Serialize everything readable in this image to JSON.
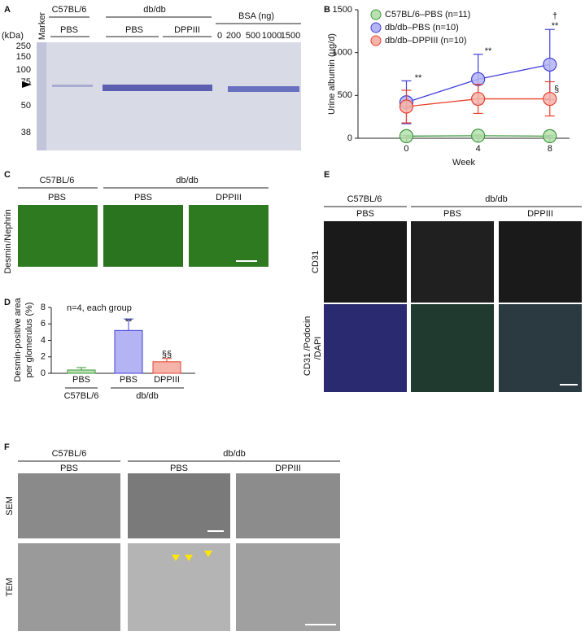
{
  "panel_labels": [
    "A",
    "B",
    "C",
    "D",
    "E",
    "F"
  ],
  "panel_a": {
    "groups": [
      "C57BL/6",
      "db/db",
      "BSA (ng)"
    ],
    "treatments": [
      "PBS",
      "PBS",
      "DPPIII"
    ],
    "bsa_amounts": [
      "0",
      "200",
      "500",
      "1000",
      "1500"
    ],
    "unit": "(kDa)",
    "marker": "Marker",
    "marker_sizes": [
      "250",
      "150",
      "100",
      "75",
      "50",
      "38"
    ]
  },
  "chart_data": [
    {
      "type": "line",
      "xlabel": "Week",
      "ylabel": "Urine albumin (µg/d)",
      "x": [
        0,
        4,
        8
      ],
      "xlim": [
        -2.7,
        9.1
      ],
      "xticks": [
        0,
        4,
        8
      ],
      "ylim": [
        0,
        1500
      ],
      "yticks": [
        0,
        500,
        1000,
        1500
      ],
      "legend": "upper left",
      "series": [
        {
          "name": "C57BL/6–PBS (n=11)",
          "color": "#3c9a3c",
          "fill": "#b8e0b0",
          "values": [
            25,
            30,
            25
          ],
          "errors": [
            10,
            10,
            10
          ]
        },
        {
          "name": "db/db–PBS (n=10)",
          "color": "#3f3fdc",
          "fill": "#b4b4f4",
          "values": [
            420,
            690,
            860
          ],
          "errors": [
            250,
            290,
            410
          ]
        },
        {
          "name": "db/db–DPPIII (n=10)",
          "color": "#e8402c",
          "fill": "#f4b4aa",
          "values": [
            370,
            460,
            460
          ],
          "errors": [
            190,
            170,
            200
          ]
        }
      ],
      "annotations": [
        "**",
        "**",
        "**",
        "†",
        "§"
      ]
    },
    {
      "type": "bar",
      "ylabel": [
        "Desmin-positive area",
        "per glomerulus (%)"
      ],
      "note": "n=4, each group",
      "categories": [
        "PBS",
        "PBS",
        "DPPIII"
      ],
      "groups": [
        "C57BL/6",
        "db/db"
      ],
      "values": [
        0.4,
        5.2,
        1.4
      ],
      "errors": [
        0.3,
        1.4,
        0.4
      ],
      "colors": [
        "#3c9a3c",
        "#3f3fdc",
        "#e8402c"
      ],
      "fills": [
        "#b8e0b0",
        "#b4b4f4",
        "#f4b4aa"
      ],
      "ylim": [
        0,
        8
      ],
      "yticks": [
        0,
        2,
        4,
        6,
        8
      ],
      "annotations": [
        "**",
        "§§"
      ]
    }
  ],
  "panel_c": {
    "groups": [
      "C57BL/6",
      "db/db"
    ],
    "treatments": [
      "PBS",
      "PBS",
      "DPPIII"
    ],
    "stain": [
      "Desmin",
      "/Nephrin"
    ]
  },
  "panel_e": {
    "groups": [
      "C57BL/6",
      "db/db"
    ],
    "treatments": [
      "PBS",
      "PBS",
      "DPPIII"
    ],
    "row1": "CD31",
    "row2": [
      "CD31",
      "/Podocin",
      "/DAPI"
    ]
  },
  "panel_f": {
    "groups": [
      "C57BL/6",
      "db/db"
    ],
    "treatments": [
      "PBS",
      "PBS",
      "DPPIII"
    ],
    "rows": [
      "SEM",
      "TEM"
    ]
  }
}
